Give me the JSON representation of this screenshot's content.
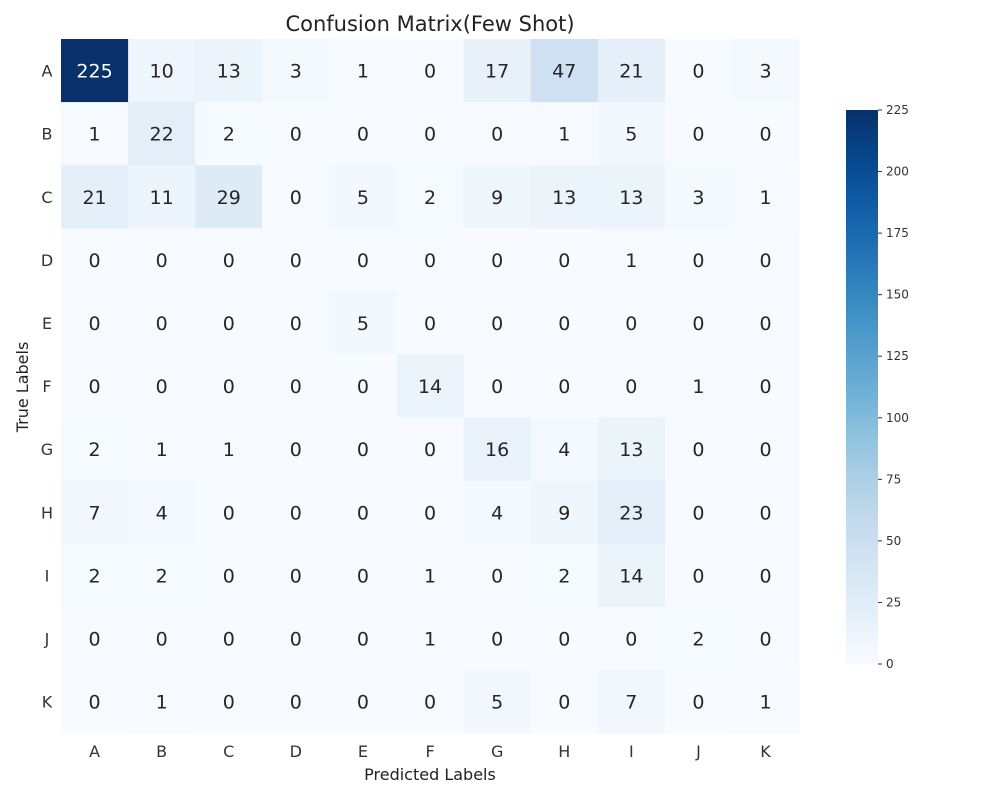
{
  "chart_data": {
    "type": "heatmap",
    "title": "Confusion Matrix(Few Shot)",
    "xlabel": "Predicted Labels",
    "ylabel": "True Labels",
    "x_categories": [
      "A",
      "B",
      "C",
      "D",
      "E",
      "F",
      "G",
      "H",
      "I",
      "J",
      "K"
    ],
    "y_categories": [
      "A",
      "B",
      "C",
      "D",
      "E",
      "F",
      "G",
      "H",
      "I",
      "J",
      "K"
    ],
    "values": [
      [
        225,
        10,
        13,
        3,
        1,
        0,
        17,
        47,
        21,
        0,
        3
      ],
      [
        1,
        22,
        2,
        0,
        0,
        0,
        0,
        1,
        5,
        0,
        0
      ],
      [
        21,
        11,
        29,
        0,
        5,
        2,
        9,
        13,
        13,
        3,
        1
      ],
      [
        0,
        0,
        0,
        0,
        0,
        0,
        0,
        0,
        1,
        0,
        0
      ],
      [
        0,
        0,
        0,
        0,
        5,
        0,
        0,
        0,
        0,
        0,
        0
      ],
      [
        0,
        0,
        0,
        0,
        0,
        14,
        0,
        0,
        0,
        1,
        0
      ],
      [
        2,
        1,
        1,
        0,
        0,
        0,
        16,
        4,
        13,
        0,
        0
      ],
      [
        7,
        4,
        0,
        0,
        0,
        0,
        4,
        9,
        23,
        0,
        0
      ],
      [
        2,
        2,
        0,
        0,
        0,
        1,
        0,
        2,
        14,
        0,
        0
      ],
      [
        0,
        0,
        0,
        0,
        0,
        1,
        0,
        0,
        0,
        2,
        0
      ],
      [
        0,
        1,
        0,
        0,
        0,
        0,
        5,
        0,
        7,
        0,
        1
      ]
    ],
    "colormap": "Blues",
    "vmin": 0,
    "vmax": 225,
    "colorbar_ticks": [
      0,
      25,
      50,
      75,
      100,
      125,
      150,
      175,
      200,
      225
    ],
    "legend_position": "right"
  }
}
